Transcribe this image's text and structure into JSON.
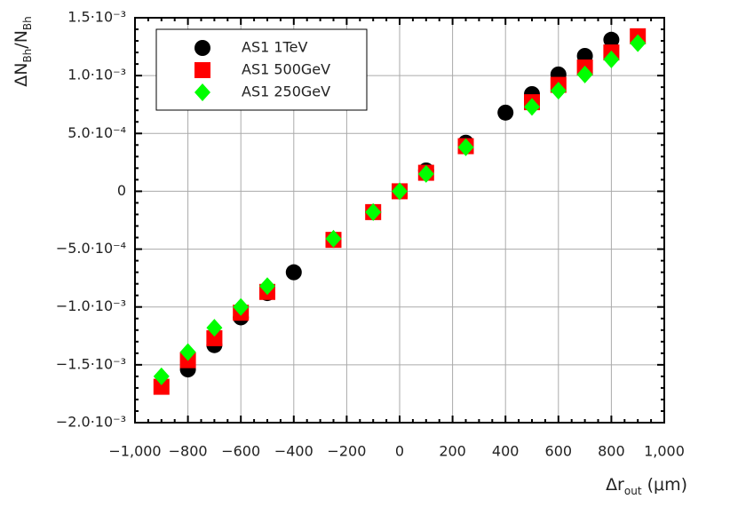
{
  "chart_data": {
    "type": "scatter",
    "xlabel": [
      {
        "text": "Δr"
      },
      {
        "text": "out",
        "sub": true
      },
      {
        "text": " (μm)"
      }
    ],
    "ylabel": [
      {
        "text": "ΔN"
      },
      {
        "text": "Bh",
        "sub": true
      },
      {
        "text": "/N"
      },
      {
        "text": "Bh",
        "sub": true
      }
    ],
    "xlim": [
      -1000,
      1000
    ],
    "xticks": [
      {
        "value": -1000,
        "label": "−1,000"
      },
      {
        "value": -800,
        "label": "−800"
      },
      {
        "value": -600,
        "label": "−600"
      },
      {
        "value": -400,
        "label": "−400"
      },
      {
        "value": -200,
        "label": "−200"
      },
      0,
      200,
      400,
      600,
      800,
      {
        "value": 1000,
        "label": "1,000"
      }
    ],
    "ylim": [
      -0.002,
      0.0015
    ],
    "yticks": [
      {
        "value": -0.002,
        "label": "−2.0·10⁻³"
      },
      {
        "value": -0.0015,
        "label": "−1.5·10⁻³"
      },
      {
        "value": -0.001,
        "label": "−1.0·10⁻³"
      },
      {
        "value": -0.0005,
        "label": "−5.0·10⁻⁴"
      },
      0,
      {
        "value": 0.0005,
        "label": "5.0·10⁻⁴"
      },
      {
        "value": 0.001,
        "label": "1.0·10⁻³"
      },
      {
        "value": 0.0015,
        "label": "1.5·10⁻³"
      }
    ],
    "grid": true,
    "legend": "upper left",
    "series": [
      {
        "name": "AS1 1TeV",
        "color": "#000000",
        "marker": "circle",
        "x": [
          -800,
          -700,
          -600,
          -500,
          -400,
          -250,
          -100,
          0,
          100,
          250,
          400,
          500,
          600,
          700,
          800
        ],
        "values": [
          -0.00154,
          -0.00133,
          -0.00109,
          -0.00088,
          -0.0007,
          -0.00042,
          -0.00018,
          0,
          0.00018,
          0.00042,
          0.00068,
          0.00084,
          0.00101,
          0.00117,
          0.00131
        ]
      },
      {
        "name": "AS1 500GeV",
        "color": "#ff0000",
        "marker": "square",
        "x": [
          -900,
          -800,
          -700,
          -600,
          -500,
          -250,
          -100,
          0,
          100,
          250,
          500,
          600,
          700,
          800,
          900
        ],
        "values": [
          -0.00169,
          -0.00146,
          -0.00127,
          -0.00105,
          -0.00087,
          -0.00042,
          -0.00018,
          0,
          0.00016,
          0.00039,
          0.00077,
          0.00092,
          0.00107,
          0.0012,
          0.00134
        ]
      },
      {
        "name": "AS1 250GeV",
        "color": "#00ff00",
        "marker": "diamond",
        "x": [
          -900,
          -800,
          -700,
          -600,
          -500,
          -250,
          -100,
          0,
          100,
          250,
          500,
          600,
          700,
          800,
          900
        ],
        "values": [
          -0.0016,
          -0.00139,
          -0.00118,
          -0.001,
          -0.00082,
          -0.00041,
          -0.00018,
          0,
          0.00015,
          0.00038,
          0.00073,
          0.00087,
          0.00101,
          0.00114,
          0.00128
        ]
      }
    ]
  }
}
